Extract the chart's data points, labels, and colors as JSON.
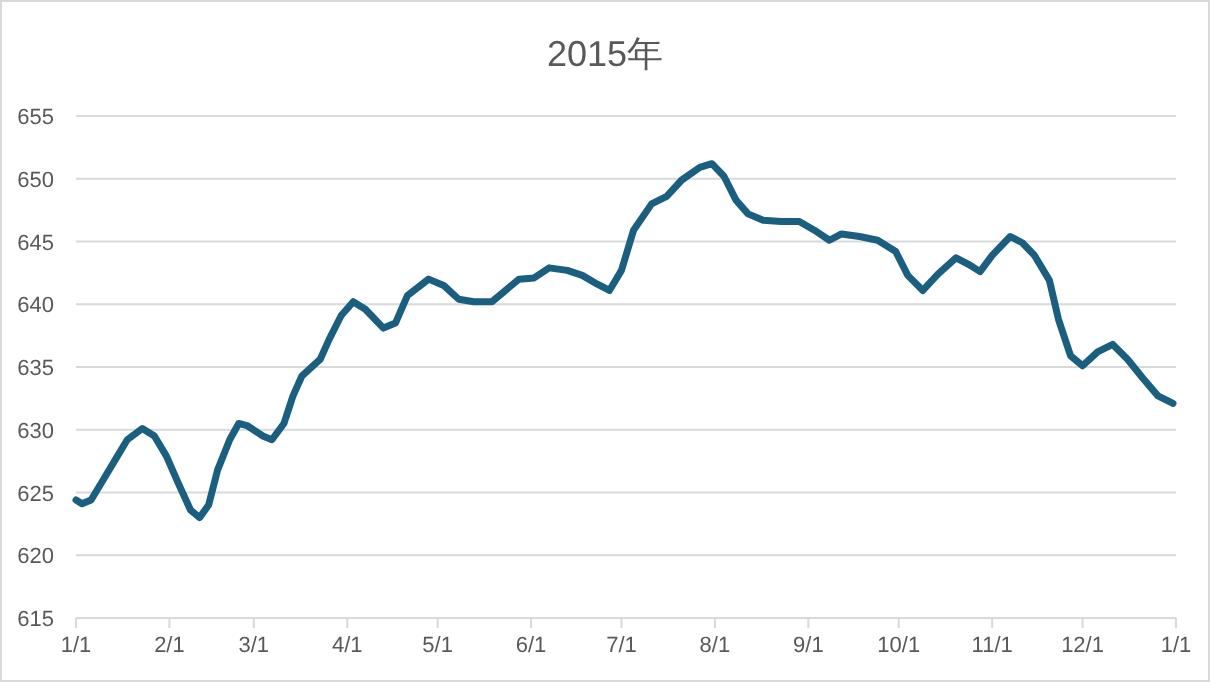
{
  "chart_data": {
    "type": "line",
    "title": "2015年",
    "x": [
      "2015-01-01",
      "2015-01-03",
      "2015-01-06",
      "2015-01-10",
      "2015-01-14",
      "2015-01-18",
      "2015-01-23",
      "2015-01-27",
      "2015-01-31",
      "2015-02-04",
      "2015-02-08",
      "2015-02-11",
      "2015-02-14",
      "2015-02-17",
      "2015-02-21",
      "2015-02-24",
      "2015-02-27",
      "2015-03-04",
      "2015-03-07",
      "2015-03-11",
      "2015-03-14",
      "2015-03-17",
      "2015-03-23",
      "2015-03-26",
      "2015-03-30",
      "2015-04-03",
      "2015-04-07",
      "2015-04-13",
      "2015-04-17",
      "2015-04-21",
      "2015-04-28",
      "2015-05-03",
      "2015-05-08",
      "2015-05-13",
      "2015-05-19",
      "2015-05-23",
      "2015-05-28",
      "2015-06-02",
      "2015-06-07",
      "2015-06-13",
      "2015-06-18",
      "2015-06-23",
      "2015-06-27",
      "2015-07-01",
      "2015-07-05",
      "2015-07-11",
      "2015-07-16",
      "2015-07-21",
      "2015-07-27",
      "2015-07-31",
      "2015-08-04",
      "2015-08-08",
      "2015-08-12",
      "2015-08-17",
      "2015-08-23",
      "2015-08-29",
      "2015-09-03",
      "2015-09-08",
      "2015-09-12",
      "2015-09-18",
      "2015-09-24",
      "2015-09-30",
      "2015-10-04",
      "2015-10-09",
      "2015-10-14",
      "2015-10-20",
      "2015-10-24",
      "2015-10-28",
      "2015-11-01",
      "2015-11-07",
      "2015-11-11",
      "2015-11-15",
      "2015-11-20",
      "2015-11-23",
      "2015-11-27",
      "2015-12-01",
      "2015-12-06",
      "2015-12-11",
      "2015-12-16",
      "2015-12-21",
      "2015-12-26",
      "2015-12-31"
    ],
    "series": [
      {
        "color": "#1b5f80",
        "values": [
          624.4,
          624.1,
          624.4,
          626,
          627.6,
          629.2,
          630.1,
          629.5,
          627.9,
          625.7,
          623.6,
          623.0,
          624,
          626.8,
          629.2,
          630.5,
          630.3,
          629.5,
          629.2,
          630.5,
          632.7,
          634.3,
          635.6,
          637.2,
          639.1,
          640.2,
          639.6,
          638.1,
          638.5,
          640.7,
          642.0,
          641.5,
          640.4,
          640.2,
          640.2,
          641.0,
          642.0,
          642.1,
          642.9,
          642.7,
          642.3,
          641.6,
          641.1,
          642.7,
          645.9,
          648.0,
          648.6,
          649.9,
          650.9,
          651.2,
          650.2,
          648.3,
          647.2,
          646.7,
          646.6,
          646.6,
          645.9,
          645.1,
          645.6,
          645.4,
          645.1,
          644.2,
          642.3,
          641.1,
          642.4,
          643.7,
          643.2,
          642.6,
          643.9,
          645.4,
          644.9,
          643.9,
          641.9,
          638.8,
          635.9,
          635.1,
          636.2,
          636.8,
          635.6,
          634.1,
          632.7,
          632.1
        ]
      }
    ],
    "xlim": [
      "2015-01-01",
      "2016-01-01"
    ],
    "xticks": [
      {
        "value": "2015-01-01",
        "label": "1/1"
      },
      {
        "value": "2015-02-01",
        "label": "2/1"
      },
      {
        "value": "2015-03-01",
        "label": "3/1"
      },
      {
        "value": "2015-04-01",
        "label": "4/1"
      },
      {
        "value": "2015-05-01",
        "label": "5/1"
      },
      {
        "value": "2015-06-01",
        "label": "6/1"
      },
      {
        "value": "2015-07-01",
        "label": "7/1"
      },
      {
        "value": "2015-08-01",
        "label": "8/1"
      },
      {
        "value": "2015-09-01",
        "label": "9/1"
      },
      {
        "value": "2015-10-01",
        "label": "10/1"
      },
      {
        "value": "2015-11-01",
        "label": "11/1"
      },
      {
        "value": "2015-12-01",
        "label": "12/1"
      },
      {
        "value": "2016-01-01",
        "label": "1/1"
      }
    ],
    "ylim": [
      615,
      655
    ],
    "yticks": [
      615,
      620,
      625,
      630,
      635,
      640,
      645,
      650,
      655
    ],
    "grid": "y",
    "marker": "none",
    "line_style": "solid"
  }
}
